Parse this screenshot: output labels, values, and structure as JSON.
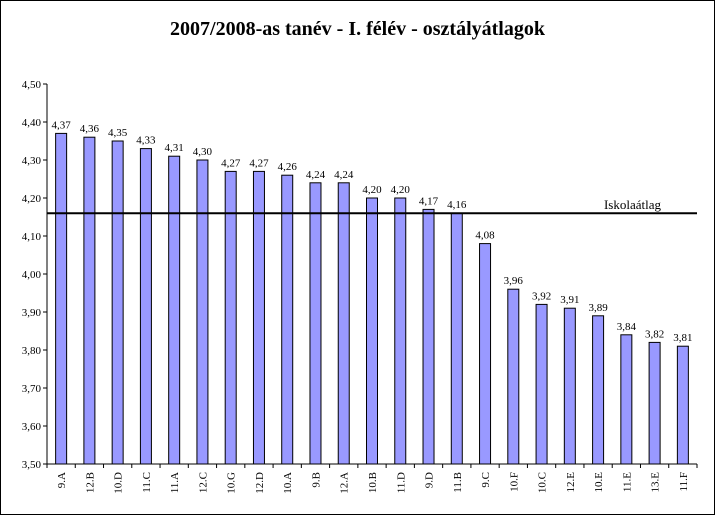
{
  "chart_data": {
    "type": "bar",
    "title": "2007/2008-as tanév - I. félév - osztályátlagok",
    "xlabel": "",
    "ylabel": "",
    "ylim": [
      3.5,
      4.5
    ],
    "ytick_step": 0.1,
    "decimal_separator": ",",
    "grid": false,
    "legend": "none",
    "categories": [
      "9.A",
      "12.B",
      "10.D",
      "11.C",
      "11.A",
      "12.C",
      "10.G",
      "12.D",
      "10.A",
      "9.B",
      "12.A",
      "10.B",
      "11.D",
      "9.D",
      "11.B",
      "9.C",
      "10.F",
      "10.C",
      "12.E",
      "10.E",
      "11.E",
      "13.E",
      "11.F"
    ],
    "values": [
      4.37,
      4.36,
      4.35,
      4.33,
      4.31,
      4.3,
      4.27,
      4.27,
      4.26,
      4.24,
      4.24,
      4.2,
      4.2,
      4.17,
      4.16,
      4.08,
      3.96,
      3.92,
      3.91,
      3.89,
      3.84,
      3.82,
      3.81
    ],
    "reference_line": {
      "label": "Iskolaátlag",
      "value": 4.16
    },
    "colors": {
      "bar_fill": "#9999ff",
      "bar_stroke": "#000000",
      "line": "#000000"
    }
  }
}
